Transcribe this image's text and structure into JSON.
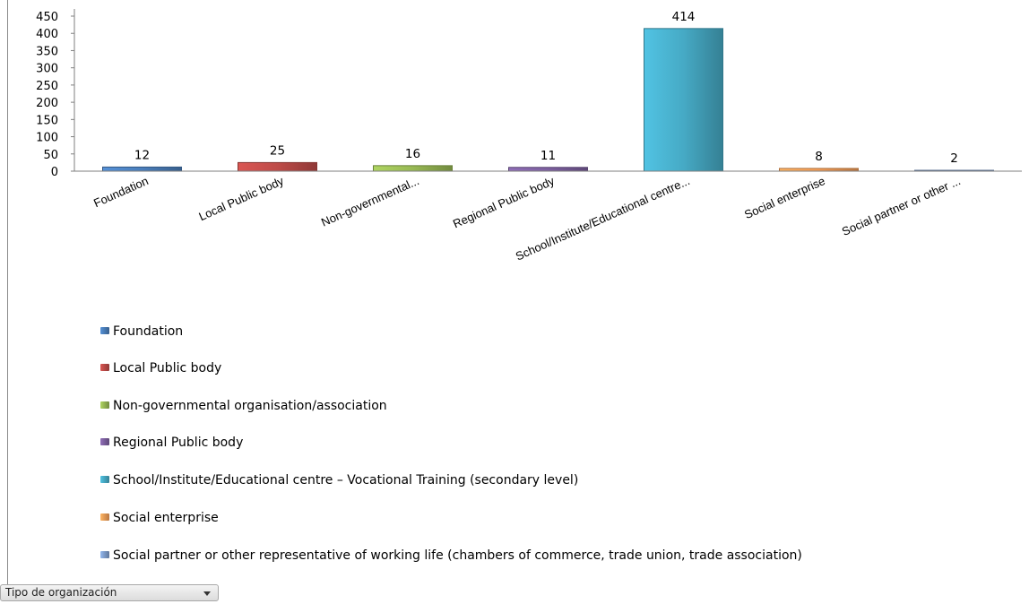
{
  "chart_data": {
    "type": "bar",
    "categories": [
      "Foundation",
      "Local Public body",
      "Non-governmental...",
      "Regional Public body",
      "School/Institute/Educational centre...",
      "Social enterprise",
      "Social partner or other ..."
    ],
    "values": [
      12,
      25,
      16,
      11,
      414,
      8,
      2
    ],
    "ylim": [
      0,
      450
    ],
    "yticks": [
      "0",
      "50",
      "100",
      "150",
      "200",
      "250",
      "300",
      "350",
      "400",
      "450"
    ],
    "data_labels": [
      "12",
      "25",
      "16",
      "11",
      "414",
      "8",
      "2"
    ],
    "colors": [
      "#4a7ebb",
      "#be4b48",
      "#98b954",
      "#7d60a0",
      "#46aac5",
      "#f59d56",
      "#7f9fcf"
    ],
    "grid": false,
    "legend_position": "bottom",
    "legend": [
      "Foundation",
      "Local Public body",
      "Non-governmental organisation/association",
      "Regional Public body",
      "School/Institute/Educational centre – Vocational Training (secondary level)",
      "Social enterprise",
      "Social partner or other representative of working life (chambers of commerce, trade union, trade association)"
    ]
  },
  "filter": {
    "label": "Tipo de organización"
  }
}
